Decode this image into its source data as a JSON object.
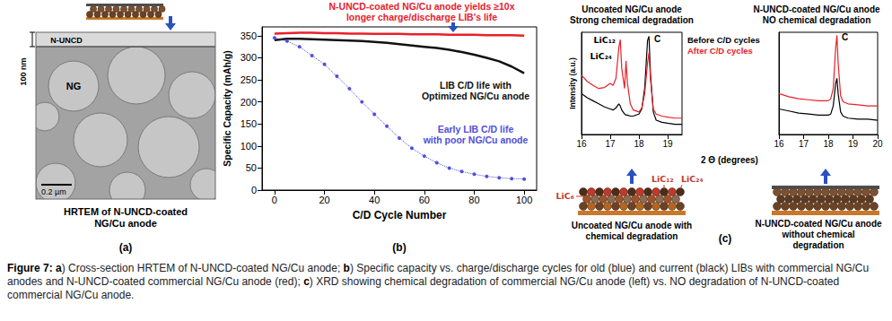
{
  "figure": {
    "panel_a": {
      "letter": "(a)",
      "caption": "HRTEM of N-UNCD-coated NG/Cu anode",
      "coating_label": "N-UNCD",
      "grain_label": "NG",
      "thickness_label": "100 nm",
      "scale_bar": "0.2 µm"
    },
    "panel_b": {
      "letter": "(b)"
    },
    "panel_c": {
      "letter": "(c)",
      "xlabel": "2 Θ (degrees)",
      "diagrams": [
        {
          "caption": "Uncoated NG/Cu anode with chemical degradation",
          "labels": [
            "LiC₆",
            "LiC₁₂",
            "LiC₂₄"
          ]
        },
        {
          "caption": "N-UNCD-coated NG/Cu anode without chemical degradation"
        }
      ]
    },
    "caption": {
      "label": "Figure 7:",
      "parts": [
        {
          "letter": "a",
          "text": ") Cross-section HRTEM of N-UNCD-coated NG/Cu anode;"
        },
        {
          "letter": "b",
          "text": ") Specific capacity vs. charge/discharge cycles for old (blue) and current (black) LIBs with commercial NG/Cu anodes and N-UNCD-coated commercial NG/Cu anode (red);"
        },
        {
          "letter": "c",
          "text": ") XRD showing chemical degradation of commercial NG/Cu anode (left) vs. NO degradation of N-UNCD-coated commercial NG/Cu anode."
        }
      ]
    }
  },
  "chart_data": [
    {
      "type": "line",
      "xlabel": "C/D Cycle Number",
      "ylabel": "Specific Capacity (mAh/g)",
      "x": [
        0,
        5,
        10,
        15,
        20,
        25,
        30,
        35,
        40,
        45,
        50,
        55,
        60,
        65,
        70,
        75,
        80,
        85,
        90,
        95,
        100
      ],
      "xlim": [
        -5,
        105
      ],
      "xticks": [
        0,
        20,
        40,
        60,
        80,
        100
      ],
      "ylim": [
        0,
        370
      ],
      "yticks": [
        0,
        50,
        100,
        150,
        200,
        250,
        300,
        350
      ],
      "grid": false,
      "series": [
        {
          "color": "#e8202a",
          "marker": "none",
          "line_style": "solid",
          "values": [
            355,
            356,
            357,
            357,
            356,
            356,
            355,
            355,
            354,
            354,
            354,
            353,
            353,
            353,
            352,
            352,
            352,
            351,
            351,
            351,
            350
          ]
        },
        {
          "color": "#111111",
          "marker": "none",
          "line_style": "solid",
          "values": [
            340,
            343,
            343,
            342,
            341,
            340,
            339,
            338,
            336,
            334,
            331,
            328,
            325,
            322,
            318,
            313,
            307,
            300,
            292,
            280,
            265
          ]
        },
        {
          "color": "#4f4fd9",
          "marker": "circle",
          "line_style": "dotted",
          "values": [
            345,
            338,
            325,
            305,
            285,
            258,
            230,
            200,
            172,
            145,
            118,
            95,
            77,
            62,
            50,
            42,
            36,
            31,
            28,
            26,
            25
          ]
        }
      ],
      "annotations": [
        {
          "text": "N-UNCD-coated NG/Cu anode yields ≥10x longer charge/discharge LIB's life",
          "color": "#e8202a"
        },
        {
          "text": "LIB C/D life with Optimized NG/Cu anode",
          "color": "#111111"
        },
        {
          "text": "Early LIB C/D life with poor NG/Cu anode",
          "color": "#4f4fd9"
        }
      ]
    },
    {
      "type": "line",
      "title": "Uncoated NG/Cu anode",
      "subtitle": "Strong chemical degradation",
      "ylabel": "Intensity (a.u.)",
      "x": [
        16,
        16.2,
        16.4,
        16.6,
        16.8,
        17.0,
        17.1,
        17.2,
        17.3,
        17.35,
        17.4,
        17.5,
        17.55,
        17.6,
        17.7,
        17.8,
        18.0,
        18.1,
        18.2,
        18.3,
        18.35,
        18.4,
        18.5,
        18.6,
        18.8,
        19.0,
        19.25,
        19.5
      ],
      "xlim": [
        16,
        19.5
      ],
      "xticks": [
        16,
        17,
        18,
        19
      ],
      "ylim": [
        0,
        100
      ],
      "tick_labels": "x",
      "grid": false,
      "legend": "right",
      "series": [
        {
          "name": "Before C/D cycles",
          "color": "#000000",
          "values": [
            40,
            36,
            33,
            30,
            27,
            25,
            24,
            26,
            30,
            28,
            24,
            20,
            19,
            19,
            18,
            18,
            20,
            25,
            45,
            92,
            96,
            60,
            22,
            14,
            12,
            11,
            10,
            10
          ]
        },
        {
          "name": "After C/D cycles",
          "color": "#e8202a",
          "values": [
            58,
            52,
            48,
            45,
            46,
            50,
            48,
            55,
            85,
            93,
            65,
            45,
            72,
            50,
            30,
            24,
            22,
            26,
            40,
            70,
            80,
            55,
            25,
            20,
            18,
            17,
            16,
            16
          ]
        }
      ],
      "annotations": [
        {
          "text": "LiC₁₂"
        },
        {
          "text": "LiC₂₄"
        },
        {
          "text": "C"
        }
      ]
    },
    {
      "type": "line",
      "title": "N-UNCD-coated NG/Cu anode",
      "subtitle": "NO chemical degradation",
      "x": [
        16,
        16.4,
        16.8,
        17.2,
        17.6,
        18.0,
        18.1,
        18.2,
        18.3,
        18.35,
        18.4,
        18.5,
        18.6,
        18.8,
        19.2,
        19.6,
        20
      ],
      "xlim": [
        16,
        20
      ],
      "xticks": [
        16,
        17,
        18,
        19,
        20
      ],
      "ylim": [
        0,
        100
      ],
      "tick_labels": "x",
      "grid": false,
      "series": [
        {
          "color": "#000000",
          "values": [
            25,
            23,
            21,
            20,
            19,
            19,
            20,
            28,
            50,
            55,
            40,
            22,
            18,
            16,
            15,
            15,
            14
          ]
        },
        {
          "color": "#e8202a",
          "values": [
            40,
            37,
            35,
            34,
            33,
            33,
            35,
            45,
            85,
            97,
            70,
            38,
            32,
            30,
            29,
            28,
            28
          ]
        }
      ],
      "annotations": [
        {
          "text": "C"
        }
      ]
    }
  ]
}
